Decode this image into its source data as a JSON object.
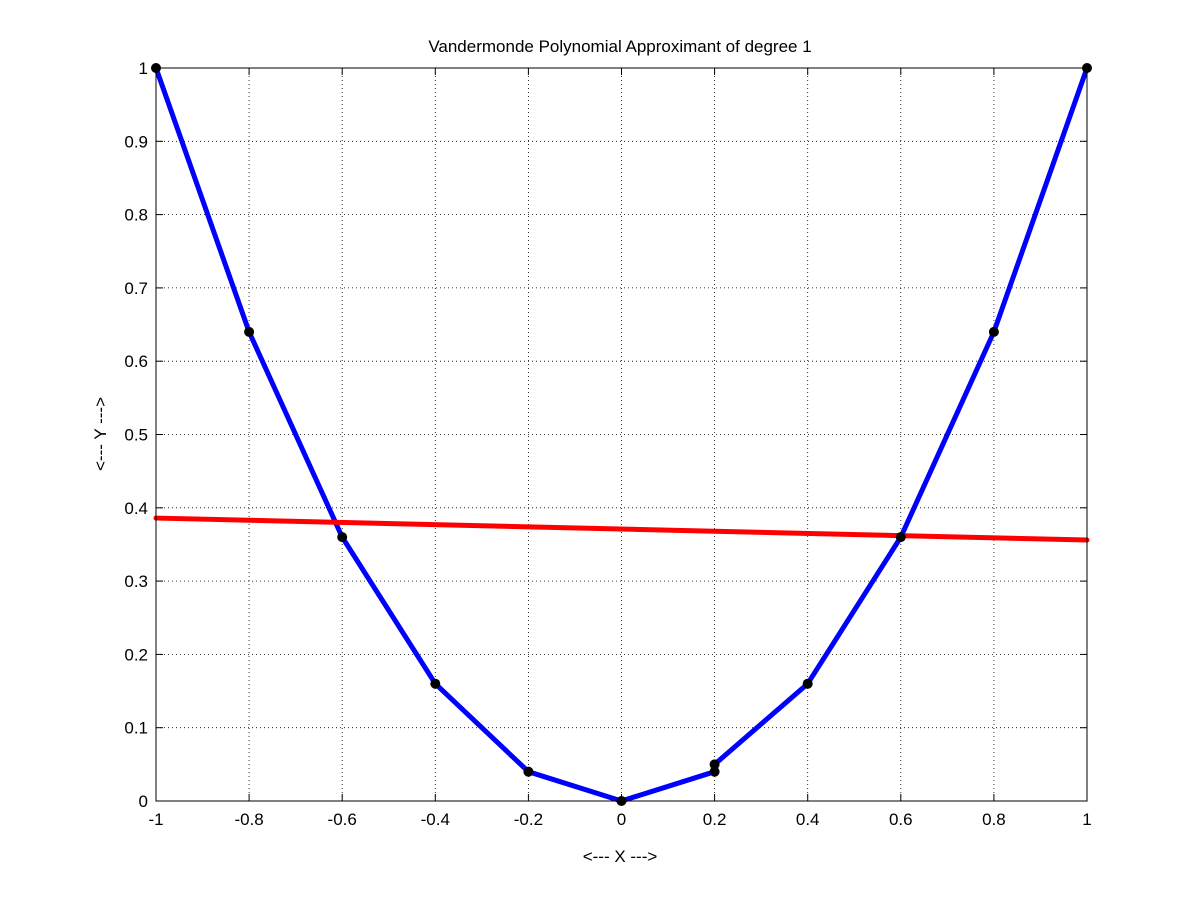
{
  "chart_data": {
    "type": "line",
    "title": "Vandermonde Polynomial Approximant of degree 1",
    "xlabel": "<--- X --->",
    "ylabel": "<--- Y --->",
    "xlim": [
      -1,
      1
    ],
    "ylim": [
      0,
      1
    ],
    "xticks": [
      -1,
      -0.8,
      -0.6,
      -0.4,
      -0.2,
      0,
      0.2,
      0.4,
      0.6,
      0.8,
      1
    ],
    "xtick_labels": [
      "-1",
      "-0.8",
      "-0.6",
      "-0.4",
      "-0.2",
      "0",
      "0.2",
      "0.4",
      "0.6",
      "0.8",
      "1"
    ],
    "yticks": [
      0,
      0.1,
      0.2,
      0.3,
      0.4,
      0.5,
      0.6,
      0.7,
      0.8,
      0.9,
      1
    ],
    "ytick_labels": [
      "0",
      "0.1",
      "0.2",
      "0.3",
      "0.4",
      "0.5",
      "0.6",
      "0.7",
      "0.8",
      "0.9",
      "1"
    ],
    "grid": true,
    "series": [
      {
        "color": "#0000ff",
        "markers": true,
        "marker_color": "#000000",
        "x": [
          -1,
          -0.8,
          -0.6,
          -0.4,
          -0.2,
          0,
          0.2,
          0.2,
          0.4,
          0.6,
          0.8,
          1
        ],
        "y": [
          1,
          0.64,
          0.36,
          0.16,
          0.04,
          0,
          0.04,
          0.05,
          0.16,
          0.36,
          0.64,
          1
        ]
      },
      {
        "color": "#ff0000",
        "markers": false,
        "x": [
          -1,
          1
        ],
        "y": [
          0.386,
          0.356
        ]
      }
    ]
  }
}
